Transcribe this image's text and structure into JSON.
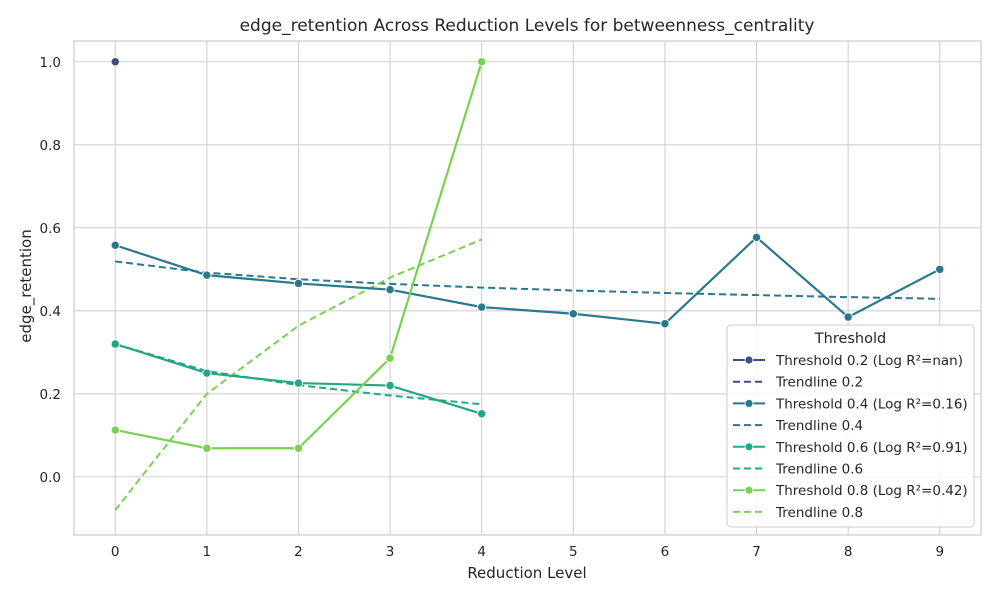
{
  "chart_data": {
    "type": "line",
    "title": "edge_retention Across Reduction Levels for betweenness_centrality",
    "xlabel": "Reduction Level",
    "ylabel": "edge_retention",
    "xlim": [
      -0.45,
      9.45
    ],
    "ylim": [
      -0.14,
      1.05
    ],
    "xticks": [
      0,
      1,
      2,
      3,
      4,
      5,
      6,
      7,
      8,
      9
    ],
    "yticks": [
      0.0,
      0.2,
      0.4,
      0.6,
      0.8,
      1.0
    ],
    "ytick_labels": [
      "0.0",
      "0.2",
      "0.4",
      "0.6",
      "0.8",
      "1.0"
    ],
    "grid": true,
    "legend": {
      "title": "Threshold",
      "placement": "lower-right"
    },
    "series": [
      {
        "name": "Threshold 0.2 (Log R²=nan)",
        "kind": "data",
        "color": "#3e4a89",
        "x": [
          0
        ],
        "y": [
          1.0
        ]
      },
      {
        "name": "Trendline 0.2",
        "kind": "trend",
        "color": "#3e4a89",
        "x": [],
        "y": []
      },
      {
        "name": "Threshold 0.4 (Log R²=0.16)",
        "kind": "data",
        "color": "#2a788e",
        "x": [
          0,
          1,
          2,
          3,
          4,
          5,
          6,
          7,
          8,
          9
        ],
        "y": [
          0.558,
          0.486,
          0.466,
          0.451,
          0.409,
          0.393,
          0.369,
          0.577,
          0.385,
          0.5
        ]
      },
      {
        "name": "Trendline 0.4",
        "kind": "trend",
        "color": "#2a788e",
        "x": [
          0,
          1,
          2,
          3,
          4,
          5,
          6,
          7,
          8,
          9
        ],
        "y": [
          0.519,
          0.492,
          0.476,
          0.465,
          0.456,
          0.449,
          0.443,
          0.438,
          0.433,
          0.429
        ]
      },
      {
        "name": "Threshold 0.6 (Log R²=0.91)",
        "kind": "data",
        "color": "#22a884",
        "x": [
          0,
          1,
          2,
          3,
          4
        ],
        "y": [
          0.32,
          0.25,
          0.226,
          0.22,
          0.152
        ]
      },
      {
        "name": "Trendline 0.6",
        "kind": "trend",
        "color": "#22a884",
        "x": [
          0,
          1,
          2,
          3,
          4
        ],
        "y": [
          0.32,
          0.255,
          0.221,
          0.196,
          0.175
        ]
      },
      {
        "name": "Threshold 0.8 (Log R²=0.42)",
        "kind": "data",
        "color": "#7ad151",
        "x": [
          0,
          1,
          2,
          3,
          4
        ],
        "y": [
          0.113,
          0.069,
          0.069,
          0.286,
          1.0
        ]
      },
      {
        "name": "Trendline 0.8",
        "kind": "trend",
        "color": "#7ad151",
        "x": [
          0,
          1,
          2,
          3,
          4
        ],
        "y": [
          -0.08,
          0.2,
          0.364,
          0.48,
          0.572
        ]
      }
    ]
  }
}
